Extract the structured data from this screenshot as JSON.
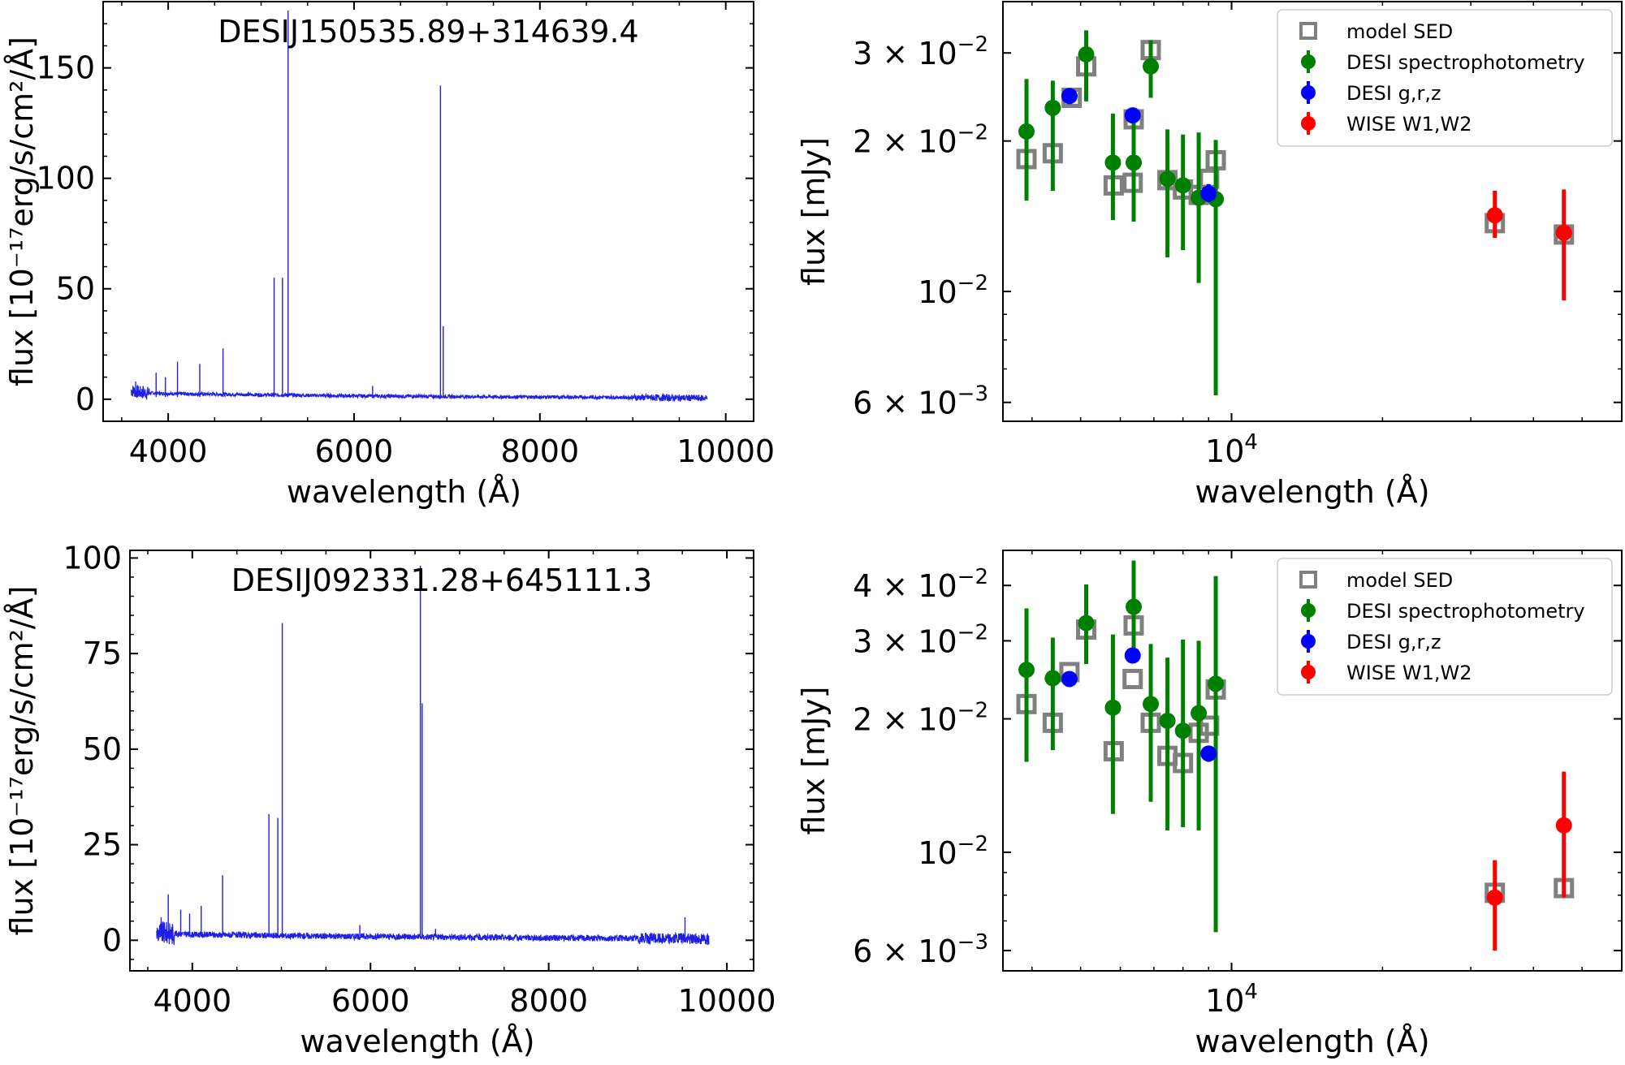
{
  "colors": {
    "spectrum": "#1f1fe6",
    "model": "#808080",
    "desi_spec": "#008000",
    "desi_grz": "#0000ff",
    "wise": "#ff0000"
  },
  "chart_data": [
    {
      "type": "line",
      "title": "DESIJ150535.89+314639.4",
      "xlabel": "wavelength (Å)",
      "ylabel": "flux [10⁻¹⁷erg/s/cm²/Å]",
      "xlim": [
        3300,
        10300
      ],
      "ylim": [
        -10,
        180
      ],
      "xticks": [
        4000,
        6000,
        8000,
        10000
      ],
      "yticks": [
        0,
        50,
        100,
        150
      ],
      "continuum": [
        [
          3600,
          4
        ],
        [
          3700,
          3
        ],
        [
          4000,
          2.5
        ],
        [
          5000,
          2
        ],
        [
          6000,
          1.5
        ],
        [
          7000,
          1.2
        ],
        [
          8000,
          1
        ],
        [
          9000,
          0.8
        ],
        [
          9800,
          0.5
        ]
      ],
      "lines": [
        [
          3650,
          8
        ],
        [
          3730,
          6
        ],
        [
          3870,
          12
        ],
        [
          3970,
          10
        ],
        [
          4100,
          17
        ],
        [
          4340,
          16
        ],
        [
          4590,
          23
        ],
        [
          5140,
          55
        ],
        [
          5230,
          55
        ],
        [
          5290,
          176
        ],
        [
          6200,
          6
        ],
        [
          6930,
          142
        ],
        [
          6960,
          33
        ]
      ]
    },
    {
      "type": "scatter",
      "xscale": "log",
      "yscale": "log",
      "xlabel": "wavelength (Å)",
      "ylabel": "flux [mJy]",
      "xlim": [
        3500,
        60000
      ],
      "ylim": [
        0.0055,
        0.038
      ],
      "yticks": [
        0.006,
        0.01,
        0.02,
        0.03
      ],
      "ytick_labels": [
        {
          "base": "6 × 10",
          "exp": "−3"
        },
        {
          "base": "10",
          "exp": "−2"
        },
        {
          "base": "2 × 10",
          "exp": "−2"
        },
        {
          "base": "3 × 10",
          "exp": "−2"
        }
      ],
      "xticks": [
        10000
      ],
      "xtick_labels": [
        {
          "base": "10",
          "exp": "4"
        }
      ],
      "legend": [
        "model SED",
        "DESI spectrophotometry",
        "DESI g,r,z",
        "WISE W1,W2"
      ],
      "model_sed": [
        [
          3900,
          0.0184
        ],
        [
          4400,
          0.0189
        ],
        [
          4800,
          0.0244
        ],
        [
          5130,
          0.0282
        ],
        [
          5820,
          0.0163
        ],
        [
          6350,
          0.0165
        ],
        [
          6380,
          0.0221
        ],
        [
          6900,
          0.0304
        ],
        [
          7450,
          0.0167
        ],
        [
          8000,
          0.016
        ],
        [
          8600,
          0.0156
        ],
        [
          9020,
          0.0168
        ],
        [
          9300,
          0.0183
        ],
        [
          33500,
          0.0137
        ],
        [
          46000,
          0.013
        ]
      ],
      "desi_spectrophotometry": [
        [
          3900,
          0.0209,
          0.0152,
          0.0266
        ],
        [
          4400,
          0.0233,
          0.0159,
          0.0264
        ],
        [
          5130,
          0.0298,
          0.024,
          0.0333
        ],
        [
          5800,
          0.0181,
          0.0139,
          0.0227
        ],
        [
          6380,
          0.0181,
          0.0138,
          0.0218
        ],
        [
          6900,
          0.0282,
          0.0244,
          0.0318
        ],
        [
          7450,
          0.0168,
          0.0117,
          0.0211
        ],
        [
          8000,
          0.0163,
          0.0121,
          0.0206
        ],
        [
          8600,
          0.0154,
          0.0104,
          0.0208
        ],
        [
          9300,
          0.0153,
          0.0062,
          0.0201
        ]
      ],
      "desi_grz": [
        [
          4750,
          0.0246,
          0.0237,
          0.0253
        ],
        [
          6350,
          0.0225,
          0.0218,
          0.0232
        ],
        [
          9000,
          0.0157,
          0.0151,
          0.0164
        ]
      ],
      "wise": [
        [
          33500,
          0.0142,
          0.0128,
          0.0159
        ],
        [
          46000,
          0.0131,
          0.0096,
          0.016
        ]
      ]
    },
    {
      "type": "line",
      "title": "DESIJ092331.28+645111.3",
      "xlabel": "wavelength (Å)",
      "ylabel": "flux [10⁻¹⁷erg/s/cm²/Å]",
      "xlim": [
        3300,
        10300
      ],
      "ylim": [
        -8,
        102
      ],
      "xticks": [
        4000,
        6000,
        8000,
        10000
      ],
      "yticks": [
        0,
        25,
        50,
        75,
        100
      ],
      "continuum": [
        [
          3600,
          2
        ],
        [
          4000,
          1.5
        ],
        [
          5000,
          1.2
        ],
        [
          6000,
          1
        ],
        [
          7000,
          0.8
        ],
        [
          8000,
          0.6
        ],
        [
          9000,
          0.5
        ],
        [
          9800,
          0.4
        ]
      ],
      "lines": [
        [
          3650,
          6
        ],
        [
          3730,
          12
        ],
        [
          3870,
          8
        ],
        [
          3970,
          7
        ],
        [
          4100,
          9
        ],
        [
          4340,
          17
        ],
        [
          4860,
          33
        ],
        [
          4960,
          32
        ],
        [
          5010,
          83
        ],
        [
          5880,
          4
        ],
        [
          6560,
          98
        ],
        [
          6580,
          62
        ],
        [
          6730,
          3
        ],
        [
          9530,
          6
        ]
      ]
    },
    {
      "type": "scatter",
      "xscale": "log",
      "yscale": "log",
      "xlabel": "wavelength (Å)",
      "ylabel": "flux [mJy]",
      "xlim": [
        3500,
        60000
      ],
      "ylim": [
        0.0054,
        0.048
      ],
      "yticks": [
        0.006,
        0.01,
        0.02,
        0.03,
        0.04
      ],
      "ytick_labels": [
        {
          "base": "6 × 10",
          "exp": "−3"
        },
        {
          "base": "10",
          "exp": "−2"
        },
        {
          "base": "2 × 10",
          "exp": "−2"
        },
        {
          "base": "3 × 10",
          "exp": "−2"
        },
        {
          "base": "4 × 10",
          "exp": "−2"
        }
      ],
      "xticks": [
        10000
      ],
      "xtick_labels": [
        {
          "base": "10",
          "exp": "4"
        }
      ],
      "legend": [
        "model SED",
        "DESI spectrophotometry",
        "DESI g,r,z",
        "WISE W1,W2"
      ],
      "model_sed": [
        [
          3900,
          0.0216,
          null,
          null
        ],
        [
          4400,
          0.0196
        ],
        [
          4750,
          0.0255
        ],
        [
          5130,
          0.0318
        ],
        [
          5820,
          0.0169
        ],
        [
          6350,
          0.0246
        ],
        [
          6380,
          0.0325
        ],
        [
          6900,
          0.0196
        ],
        [
          7450,
          0.0165
        ],
        [
          8000,
          0.0159
        ],
        [
          8600,
          0.0186
        ],
        [
          9020,
          0.0193
        ],
        [
          9300,
          0.0233
        ],
        [
          33500,
          0.0081
        ],
        [
          46000,
          0.0083
        ]
      ],
      "desi_spectrophotometry": [
        [
          3900,
          0.0258,
          0.016,
          0.0355
        ],
        [
          4400,
          0.0247,
          0.017,
          0.0305
        ],
        [
          5130,
          0.0329,
          0.0266,
          0.0402
        ],
        [
          5800,
          0.0212,
          0.0122,
          0.031
        ],
        [
          6380,
          0.0358,
          0.027,
          0.0455
        ],
        [
          6900,
          0.0216,
          0.013,
          0.0295
        ],
        [
          7450,
          0.0198,
          0.0112,
          0.0275
        ],
        [
          8000,
          0.0188,
          0.0114,
          0.0302
        ],
        [
          8600,
          0.0206,
          0.0112,
          0.03
        ],
        [
          9300,
          0.024,
          0.0066,
          0.042
        ]
      ],
      "desi_grz": [
        [
          4750,
          0.0246,
          0.0238,
          0.0254
        ],
        [
          6350,
          0.0278,
          0.0268,
          0.0288
        ],
        [
          9000,
          0.0167,
          0.016,
          0.0174
        ]
      ],
      "wise": [
        [
          33500,
          0.0079,
          0.006,
          0.0096
        ],
        [
          46000,
          0.0115,
          0.0079,
          0.0152
        ]
      ]
    }
  ]
}
